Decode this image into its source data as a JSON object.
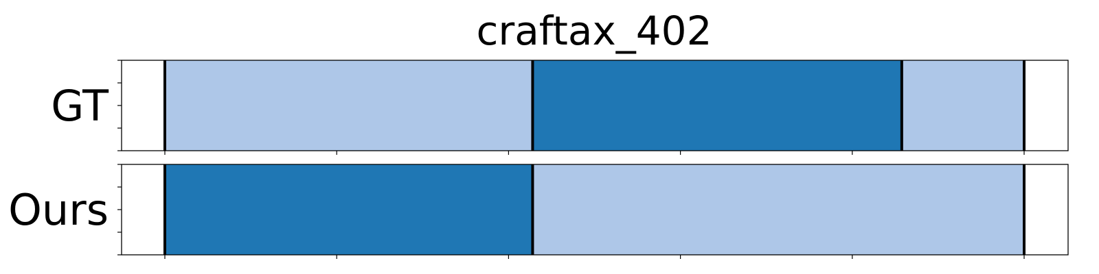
{
  "chart_data": {
    "type": "segmentation-timeline",
    "title": "craftax_402",
    "xlim": [
      0,
      1250
    ],
    "xticks": [
      0,
      250,
      500,
      750,
      1000,
      1250
    ],
    "rows": [
      {
        "label": "GT",
        "segments": [
          {
            "start": 0,
            "end": 535,
            "class_index": 1
          },
          {
            "start": 535,
            "end": 1072,
            "class_index": 0
          },
          {
            "start": 1072,
            "end": 1250,
            "class_index": 1
          }
        ],
        "boundaries": [
          0,
          535,
          1072,
          1250
        ]
      },
      {
        "label": "Ours",
        "segments": [
          {
            "start": 0,
            "end": 535,
            "class_index": 0
          },
          {
            "start": 535,
            "end": 1250,
            "class_index": 1
          }
        ],
        "boundaries": [
          0,
          535,
          1250
        ]
      }
    ],
    "class_colors": [
      "#1f77b4",
      "#aec7e8"
    ],
    "boundary_color": "#000000",
    "grid": false,
    "legend": "none"
  }
}
